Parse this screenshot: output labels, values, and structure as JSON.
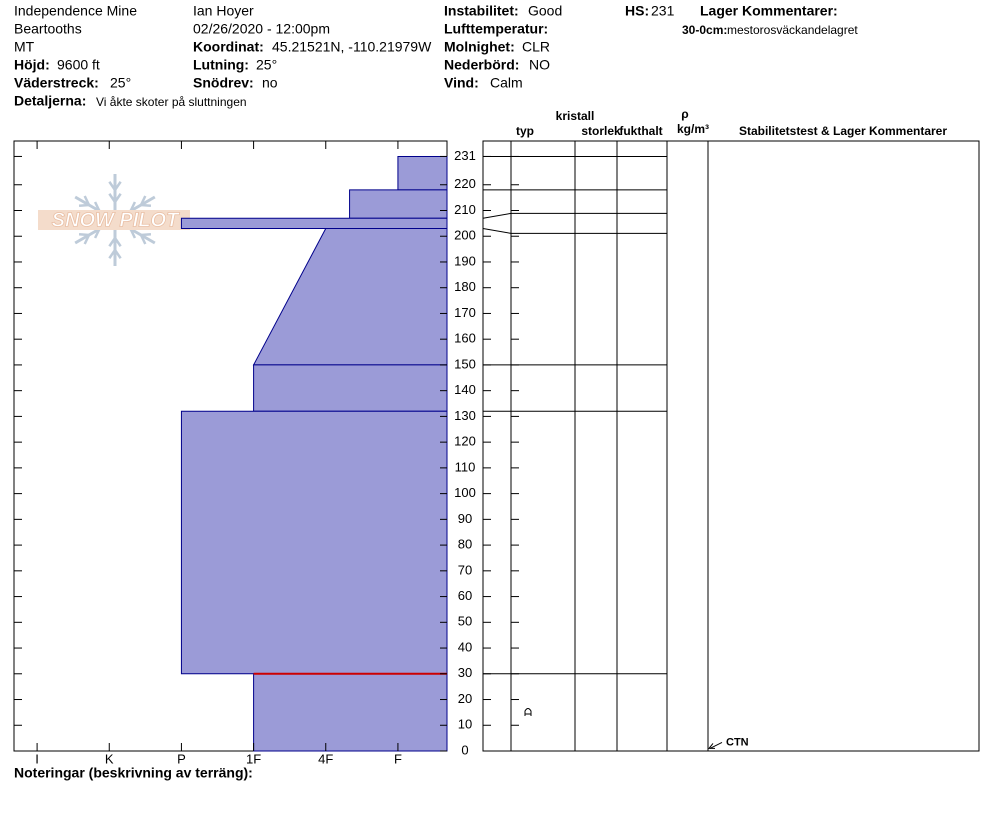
{
  "header": {
    "site": "Independence Mine",
    "range": "Beartooths",
    "state": "MT",
    "observer": "Ian Hoyer",
    "datetime": "02/26/2020 - 12:00pm",
    "elevation": {
      "label": "Höjd:",
      "value": "9600 ft"
    },
    "aspect": {
      "label": "Väderstreck:",
      "value": "25°"
    },
    "details": {
      "label": "Detaljerna:",
      "value": "Vi åkte skoter på sluttningen"
    },
    "coordinates": {
      "label": "Koordinat:",
      "value": "45.21521N, -110.21979W"
    },
    "slope": {
      "label": "Lutning:",
      "value": "25°"
    },
    "wind_loading": {
      "label": "Snödrev:",
      "value": "no"
    },
    "instability": {
      "label": "Instabilitet:",
      "value": "Good"
    },
    "air_temp": {
      "label": "Lufttemperatur:"
    },
    "sky": {
      "label": "Molnighet:",
      "value": "CLR"
    },
    "precip": {
      "label": "Nederbörd:",
      "value": "NO"
    },
    "wind": {
      "label": "Vind:",
      "value": "Calm"
    },
    "hs": {
      "label": "HS:",
      "value": "231"
    },
    "layer_comments": {
      "label": "Lager Kommentarer:",
      "range": "30-0cm:",
      "text": "mestorosväckandelagret"
    }
  },
  "watermark": "SNOW PILOT",
  "chart_data": {
    "type": "hardness-profile",
    "color": "#9b9bd7",
    "stroke": "#00008b",
    "concern_color": "#cc0000",
    "ylim": [
      0,
      237
    ],
    "yticks": [
      0,
      10,
      20,
      30,
      40,
      50,
      60,
      70,
      80,
      90,
      100,
      110,
      120,
      130,
      140,
      150,
      160,
      170,
      180,
      190,
      200,
      210,
      220,
      231
    ],
    "xlim": [
      0.68,
      6.68
    ],
    "xticks": [
      {
        "value": 1,
        "label": "I"
      },
      {
        "value": 2,
        "label": "K"
      },
      {
        "value": 3,
        "label": "P"
      },
      {
        "value": 4,
        "label": "1F"
      },
      {
        "value": 5,
        "label": "4F"
      },
      {
        "value": 6,
        "label": "F"
      }
    ],
    "layers": [
      {
        "top": 231,
        "bottom": 218,
        "hardness_top": 6,
        "hardness_bottom": 6
      },
      {
        "top": 218,
        "bottom": 207,
        "hardness_top": 5.33,
        "hardness_bottom": 5.33
      },
      {
        "top": 207,
        "bottom": 203,
        "hardness_top": 3,
        "hardness_bottom": 3
      },
      {
        "top": 203,
        "bottom": 150,
        "hardness_top": 5,
        "hardness_bottom": 4
      },
      {
        "top": 150,
        "bottom": 132,
        "hardness_top": 4,
        "hardness_bottom": 4
      },
      {
        "top": 132,
        "bottom": 30,
        "hardness_top": 3,
        "hardness_bottom": 3
      },
      {
        "top": 30,
        "bottom": 0,
        "hardness_top": 4,
        "hardness_bottom": 4
      }
    ],
    "concern_top": 30,
    "tests": [
      {
        "label": "CTN",
        "height": 1
      }
    ],
    "table_headers": {
      "type": "typ",
      "size": [
        "kristall",
        "storlek"
      ],
      "moisture": "fukthalt",
      "density": [
        "ρ",
        "kg/m³"
      ],
      "comments": "Stabilitetstest & Lager Kommentarer"
    }
  },
  "footer": "Noteringar (beskrivning av terräng):"
}
